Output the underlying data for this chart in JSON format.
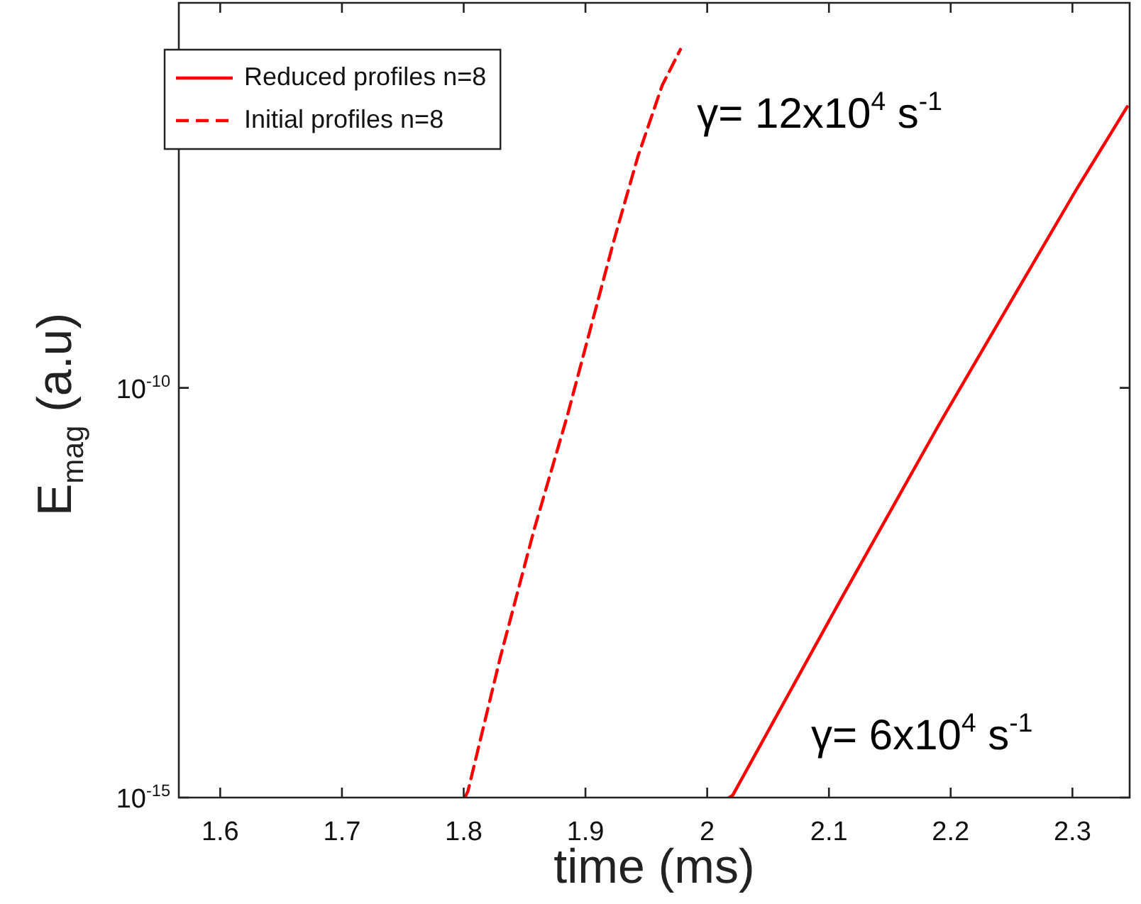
{
  "chart_data": {
    "type": "line",
    "xlabel": "time (ms)",
    "ylabel": "E$_{mag}$ (a.u)",
    "series": [
      {
        "name": "Reduced profiles n=8",
        "color": "#ff0000",
        "line_style": "solid",
        "x": [
          2.018,
          2.021,
          2.109,
          2.191,
          2.253,
          2.303,
          2.345
        ],
        "values": [
          1e-15,
          1.07e-15,
          2.5e-13,
          3.7e-11,
          1.4e-09,
          2.6e-08,
          2.7e-07
        ]
      },
      {
        "name": "Initial profiles n=8",
        "color": "#ff0000",
        "line_style": "dashed",
        "x": [
          1.801,
          1.8035,
          1.83,
          1.858,
          1.885,
          1.923,
          1.943,
          1.963,
          1.978
        ],
        "values": [
          1e-15,
          1.2e-15,
          5.1e-14,
          1.9e-12,
          4.5e-11,
          6e-09,
          6.6e-08,
          4.9e-07,
          1.35e-06
        ]
      }
    ],
    "xlim": [
      1.566,
      2.347
    ],
    "xticks": [
      1.6,
      1.7,
      1.8,
      1.9,
      2,
      2.1,
      2.2,
      2.3
    ],
    "ylim": [
      1e-15,
      5e-06
    ],
    "yticks": [
      {
        "value": 1e-15,
        "label": "10$^{-15}$"
      },
      {
        "value": 1e-10,
        "label": "10$^{-10}$"
      }
    ],
    "log": "y",
    "grid": false,
    "legend": "top left",
    "marker": "none",
    "annotations": [
      "γ= 12x10$^{4}$ s$^{-1}$",
      "γ= 6x10$^{4}$ s$^{-1}$"
    ]
  }
}
